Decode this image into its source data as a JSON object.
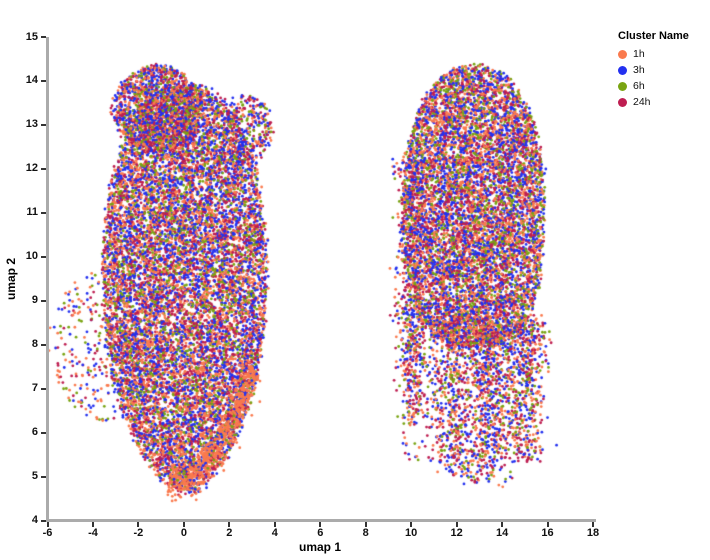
{
  "chart_data": {
    "type": "scatter",
    "title": "",
    "xlabel": "umap 1",
    "ylabel": "umap 2",
    "xlim": [
      -6,
      18
    ],
    "ylim": [
      4,
      15
    ],
    "x_ticks": [
      -6,
      -4,
      -2,
      0,
      2,
      4,
      6,
      8,
      10,
      12,
      14,
      16,
      18
    ],
    "y_ticks": [
      4,
      5,
      6,
      7,
      8,
      9,
      10,
      11,
      12,
      13,
      14,
      15
    ],
    "grid": false,
    "background": "#ffffff",
    "axis_line_color": "#ababab",
    "tick_color": "#333333",
    "legend": {
      "title": "Cluster Name",
      "position": "top-right-outside",
      "items": [
        {
          "label": "1h",
          "color": "#fa7a4e"
        },
        {
          "label": "3h",
          "color": "#2330f0"
        },
        {
          "label": "6h",
          "color": "#79a412"
        },
        {
          "label": "24h",
          "color": "#be1e51"
        }
      ]
    },
    "series": [
      {
        "name": "1h",
        "color": "#fa7a4e"
      },
      {
        "name": "3h",
        "color": "#2330f0"
      },
      {
        "name": "6h",
        "color": "#79a412"
      },
      {
        "name": "24h",
        "color": "#be1e51"
      }
    ],
    "color_weights": [
      0.28,
      0.3,
      0.17,
      0.25
    ],
    "point_radius_px": 1.4,
    "seed": 7,
    "clusters": [
      {
        "name": "left-main-blob",
        "kind": "superellipse",
        "cx": 0.05,
        "cy": 9.3,
        "rx": 3.6,
        "ryTop": 4.6,
        "expTop": 2.3,
        "ryBottom": 4.65,
        "expBottom": 1.8,
        "count": 12000
      },
      {
        "name": "left-top-cap",
        "kind": "ellipse",
        "cx": -1.15,
        "cy": 13.35,
        "rx": 1.95,
        "ry": 1.0,
        "count": 1500
      },
      {
        "name": "left-upper-right-wing",
        "kind": "ellipse",
        "cx": 2.8,
        "cy": 12.9,
        "rx": 1.1,
        "ry": 0.8,
        "count": 320
      },
      {
        "name": "left-sparse-halo",
        "kind": "ellipse",
        "cx": -3.3,
        "cy": 8.0,
        "rx": 2.6,
        "ry": 1.75,
        "count": 380
      },
      {
        "name": "left-bottom-orange-fringe",
        "kind": "path",
        "width": 0.2,
        "count": 650,
        "points": [
          [
            3.05,
            7.5
          ],
          [
            2.1,
            6.2
          ],
          [
            1.0,
            5.3
          ],
          [
            0.1,
            4.82
          ],
          [
            -0.6,
            5.05
          ]
        ],
        "color_weights": [
          0.86,
          0.05,
          0.04,
          0.05
        ]
      },
      {
        "name": "right-main-blob",
        "kind": "superellipse",
        "cx": 12.75,
        "cy": 11.15,
        "rx": 3.1,
        "ryTop": 3.2,
        "expTop": 2.2,
        "ryBottom": 3.2,
        "expBottom": 2.8,
        "count": 8200
      },
      {
        "name": "right-left-edge-noise",
        "kind": "strip",
        "x": 9.9,
        "sx": 0.33,
        "yTop": 12.4,
        "yBottom": 8.6,
        "count": 260,
        "taper": 1
      },
      {
        "name": "right-tendril-1",
        "kind": "strip",
        "x": 10.05,
        "sx": 0.3,
        "yTop": 8.7,
        "yBottom": 6.2,
        "count": 380,
        "taper": 0.5
      },
      {
        "name": "right-tendril-2",
        "kind": "strip",
        "x": 11.85,
        "sx": 0.45,
        "yTop": 8.6,
        "yBottom": 5.0,
        "count": 700,
        "taper": 0.45
      },
      {
        "name": "right-tendril-3",
        "kind": "strip",
        "x": 13.4,
        "sx": 0.5,
        "yTop": 8.5,
        "yBottom": 4.85,
        "count": 900,
        "taper": 0.5
      },
      {
        "name": "right-tendril-4",
        "kind": "strip",
        "x": 14.95,
        "sx": 0.45,
        "yTop": 8.6,
        "yBottom": 5.3,
        "count": 700,
        "taper": 0.5
      },
      {
        "name": "right-bottom-scatter",
        "kind": "box",
        "x0": 9.6,
        "x1": 15.8,
        "y0": 5.3,
        "y1": 8.7,
        "count": 420
      }
    ]
  }
}
